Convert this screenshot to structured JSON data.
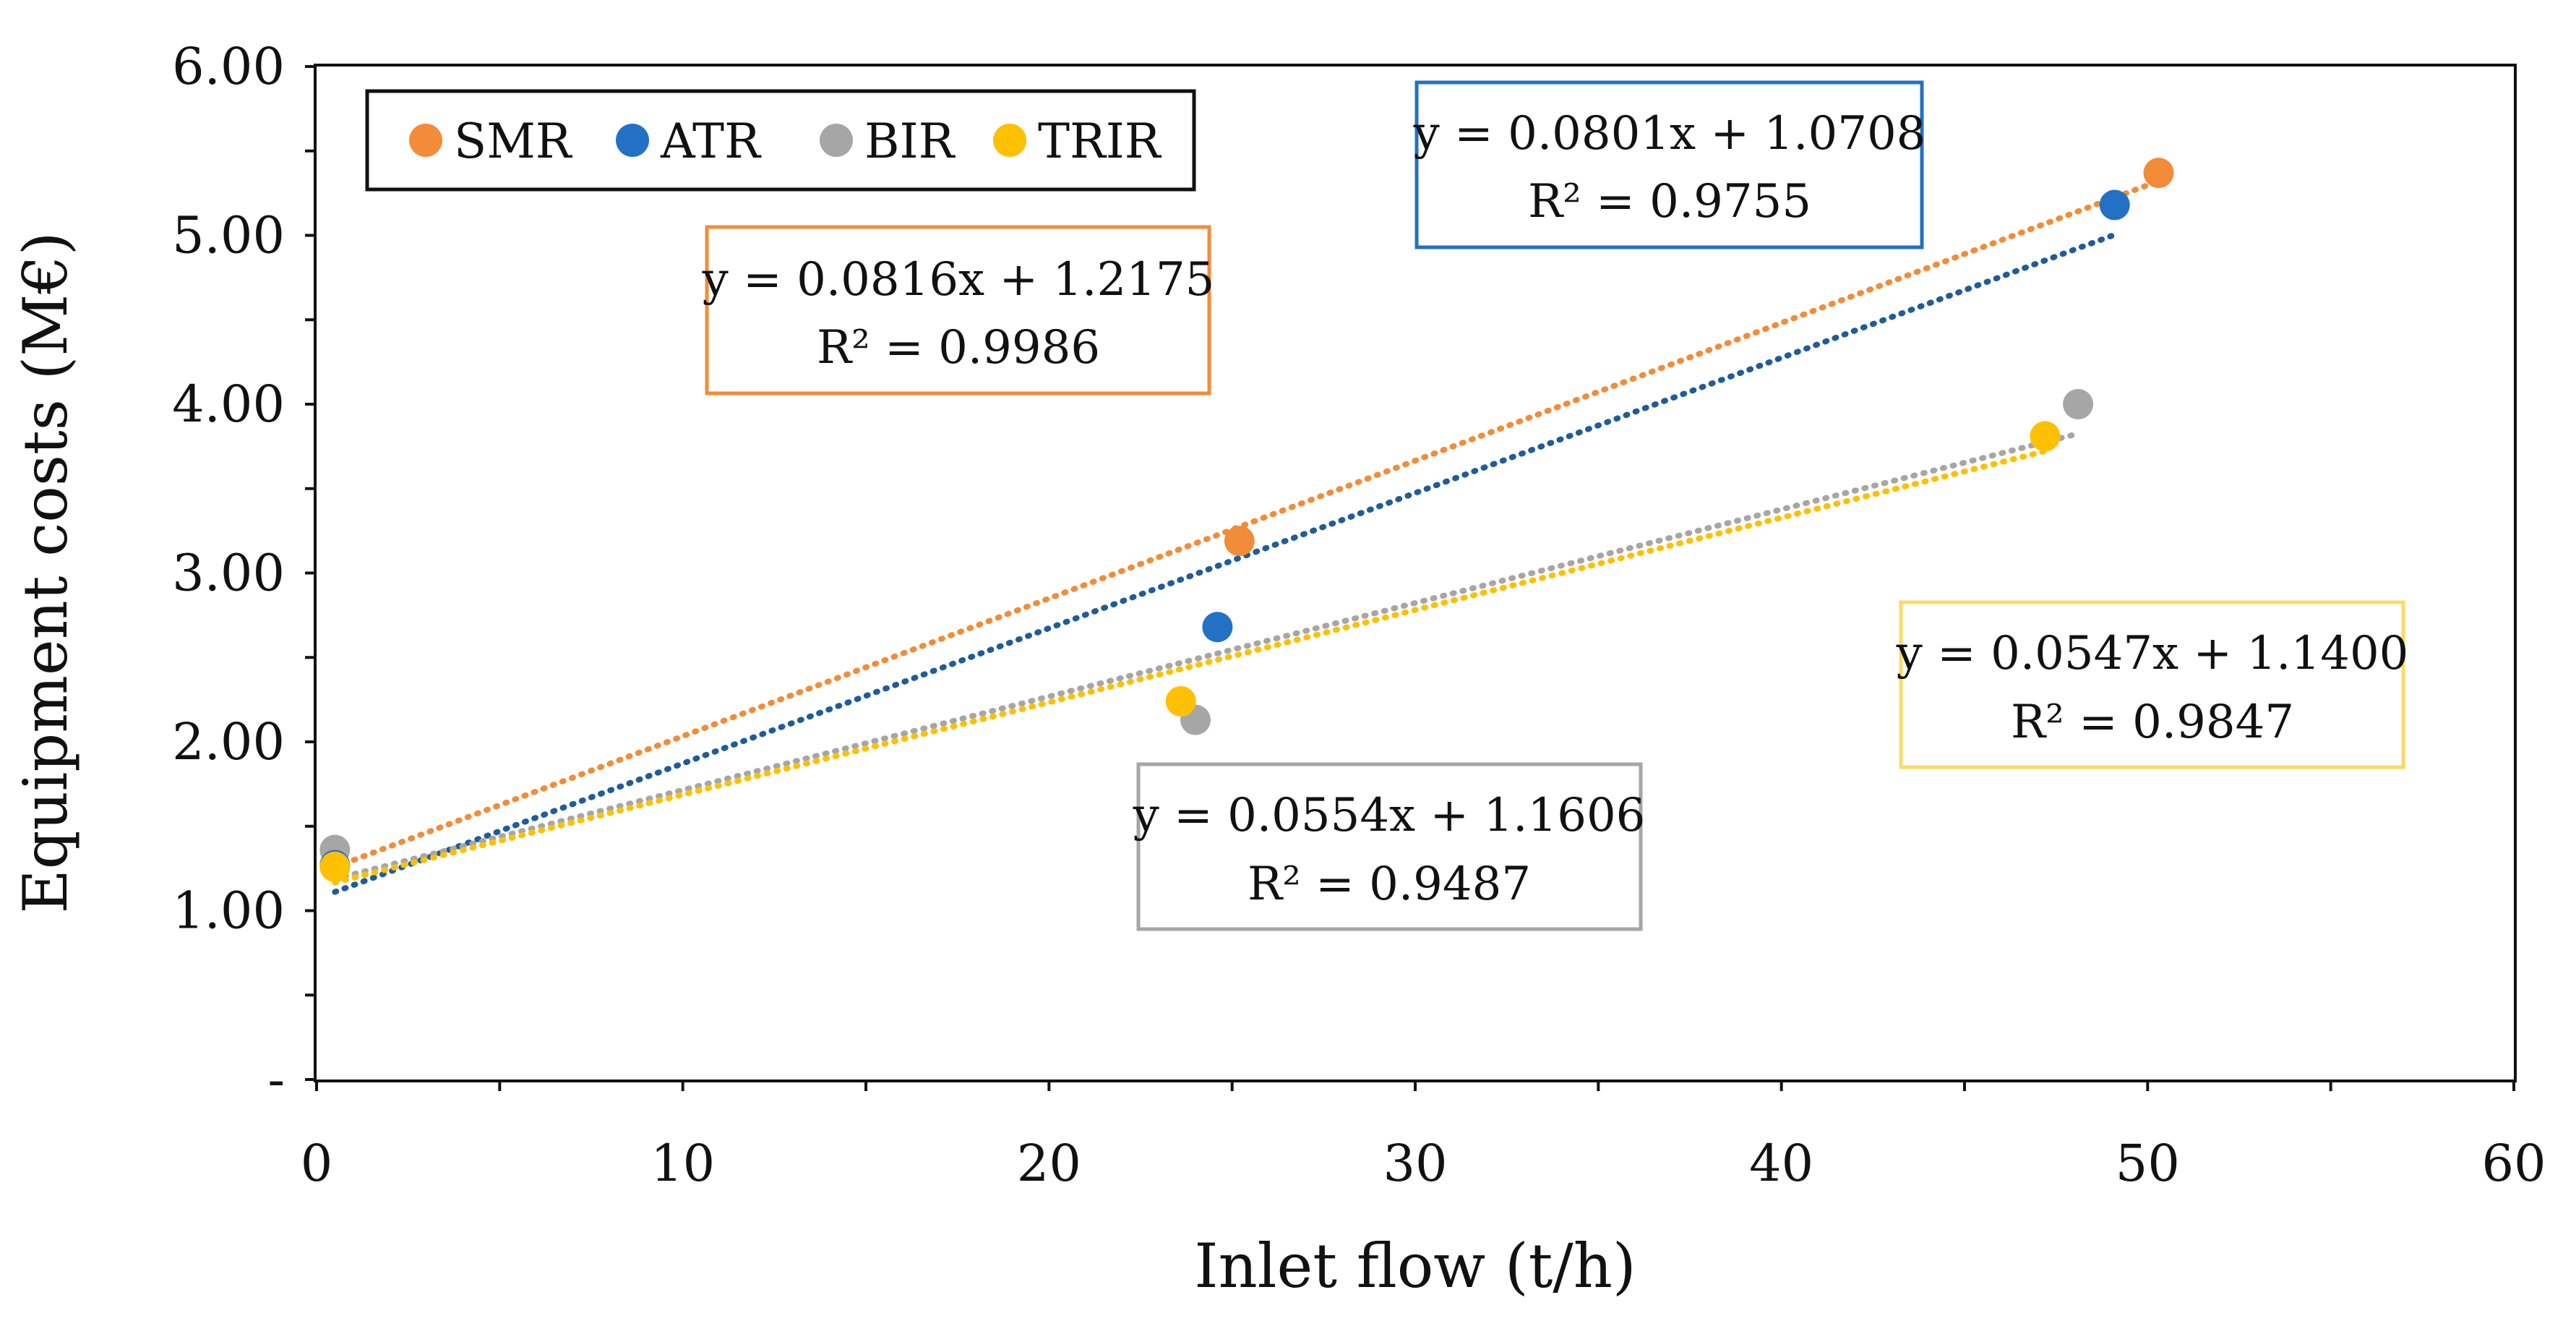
{
  "chart_data": {
    "type": "scatter",
    "title": "",
    "xlabel": "Inlet flow (t/h)",
    "ylabel": "Equipment costs (M€)",
    "xlim": [
      0,
      60
    ],
    "ylim": [
      0,
      6
    ],
    "x_ticks": [
      "0",
      "10",
      "20",
      "30",
      "40",
      "50",
      "60"
    ],
    "y_ticks": [
      "-",
      "1.00",
      "2.00",
      "3.00",
      "4.00",
      "5.00",
      "6.00"
    ],
    "grid": false,
    "legend": {
      "placement": "top-left",
      "entries": [
        "SMR",
        "ATR",
        "BIR",
        "TRIR"
      ]
    },
    "series": [
      {
        "name": "SMR",
        "color": "#F28C38",
        "trendline_color": "#F28C38",
        "x": [
          0.5,
          25.2,
          50.3
        ],
        "y": [
          1.26,
          3.19,
          5.37
        ],
        "trendline": {
          "slope": 0.0816,
          "intercept": 1.2175,
          "x_range": [
            0.5,
            50.3
          ]
        },
        "equation": "y = 0.0816x + 1.2175",
        "r2": "R² = 0.9986"
      },
      {
        "name": "ATR",
        "color": "#2271C4",
        "trendline_color": "#1F5C99",
        "x": [
          0.5,
          24.6,
          49.1
        ],
        "y": [
          1.27,
          2.68,
          5.18
        ],
        "trendline": {
          "slope": 0.0801,
          "intercept": 1.0708,
          "x_range": [
            0.5,
            49.1
          ]
        },
        "equation": "y = 0.0801x + 1.0708",
        "r2": "R² = 0.9755"
      },
      {
        "name": "BIR",
        "color": "#A6A6A6",
        "trendline_color": "#A6A6A6",
        "x": [
          0.5,
          24.0,
          48.1
        ],
        "y": [
          1.36,
          2.13,
          4.0
        ],
        "trendline": {
          "slope": 0.0554,
          "intercept": 1.1606,
          "x_range": [
            0.5,
            48.1
          ]
        },
        "equation": "y = 0.0554x + 1.1606",
        "r2": "R² = 0.9487"
      },
      {
        "name": "TRIR",
        "color": "#FFC000",
        "trendline_color": "#FFC000",
        "x": [
          0.5,
          23.6,
          47.2
        ],
        "y": [
          1.26,
          2.24,
          3.81
        ],
        "trendline": {
          "slope": 0.0547,
          "intercept": 1.14,
          "x_range": [
            0.5,
            47.2
          ]
        },
        "equation": "y = 0.0547x + 1.1400",
        "r2": "R² = 0.9847"
      }
    ]
  }
}
